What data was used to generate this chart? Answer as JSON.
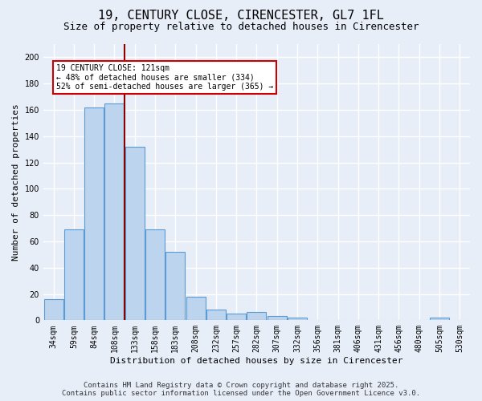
{
  "title_line1": "19, CENTURY CLOSE, CIRENCESTER, GL7 1FL",
  "title_line2": "Size of property relative to detached houses in Cirencester",
  "categories": [
    "34sqm",
    "59sqm",
    "84sqm",
    "108sqm",
    "133sqm",
    "158sqm",
    "183sqm",
    "208sqm",
    "232sqm",
    "257sqm",
    "282sqm",
    "307sqm",
    "332sqm",
    "356sqm",
    "381sqm",
    "406sqm",
    "431sqm",
    "456sqm",
    "480sqm",
    "505sqm",
    "530sqm"
  ],
  "values": [
    16,
    69,
    162,
    165,
    132,
    69,
    52,
    18,
    8,
    5,
    6,
    3,
    2,
    0,
    0,
    0,
    0,
    0,
    0,
    2,
    0
  ],
  "bar_color": "#bcd4ee",
  "bar_edge_color": "#5b9bd5",
  "ylabel": "Number of detached properties",
  "xlabel": "Distribution of detached houses by size in Cirencester",
  "ylim": [
    0,
    210
  ],
  "yticks": [
    0,
    20,
    40,
    60,
    80,
    100,
    120,
    140,
    160,
    180,
    200
  ],
  "vline_x": 3.5,
  "vline_color": "#8b0000",
  "annotation_line1": "19 CENTURY CLOSE: 121sqm",
  "annotation_line2": "← 48% of detached houses are smaller (334)",
  "annotation_line3": "52% of semi-detached houses are larger (365) →",
  "annotation_box_color": "#ffffff",
  "annotation_box_edge": "#cc0000",
  "footer_line1": "Contains HM Land Registry data © Crown copyright and database right 2025.",
  "footer_line2": "Contains public sector information licensed under the Open Government Licence v3.0.",
  "background_color": "#e8eef8",
  "grid_color": "#d0daea",
  "title_fontsize": 11,
  "subtitle_fontsize": 9,
  "tick_fontsize": 7,
  "ylabel_fontsize": 8,
  "xlabel_fontsize": 8,
  "footer_fontsize": 6.5
}
